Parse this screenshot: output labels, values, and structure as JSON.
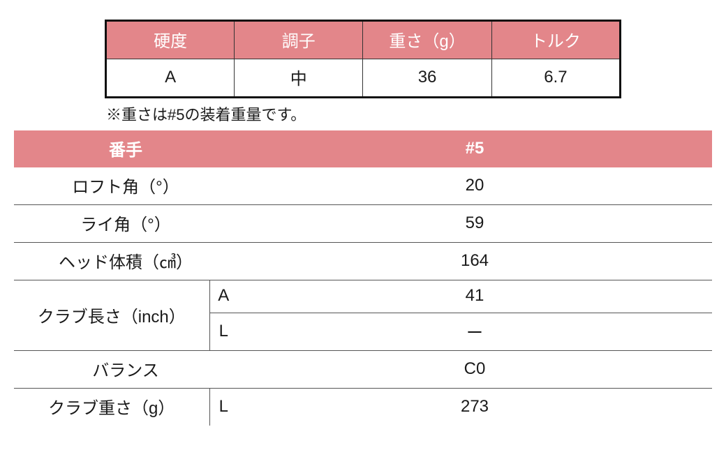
{
  "colors": {
    "header_bg": "#e3868a",
    "header_fg": "#ffffff",
    "rule": "#555555",
    "border_t1": "#111111",
    "bg": "#ffffff",
    "text": "#1a1a1a"
  },
  "table1": {
    "headers": [
      "硬度",
      "調子",
      "重さ（g）",
      "トルク"
    ],
    "row": [
      "A",
      "中",
      "36",
      "6.7"
    ]
  },
  "note": "※重さは#5の装着重量です。",
  "table2": {
    "header_label": "番手",
    "header_value": "#5",
    "rows": {
      "loft": {
        "label": "ロフト角（°）",
        "value": "20"
      },
      "lie": {
        "label": "ライ角（°）",
        "value": "59"
      },
      "volume": {
        "label": "ヘッド体積（㎤）",
        "value": "164"
      },
      "length": {
        "label": "クラブ長さ（inch）",
        "sub": [
          {
            "k": "A",
            "v": "41"
          },
          {
            "k": "L",
            "v": "ー"
          }
        ]
      },
      "balance": {
        "label": "バランス",
        "value": "C0"
      },
      "weight": {
        "label": "クラブ重さ（g）",
        "sub_k": "L",
        "value": "273"
      }
    }
  }
}
